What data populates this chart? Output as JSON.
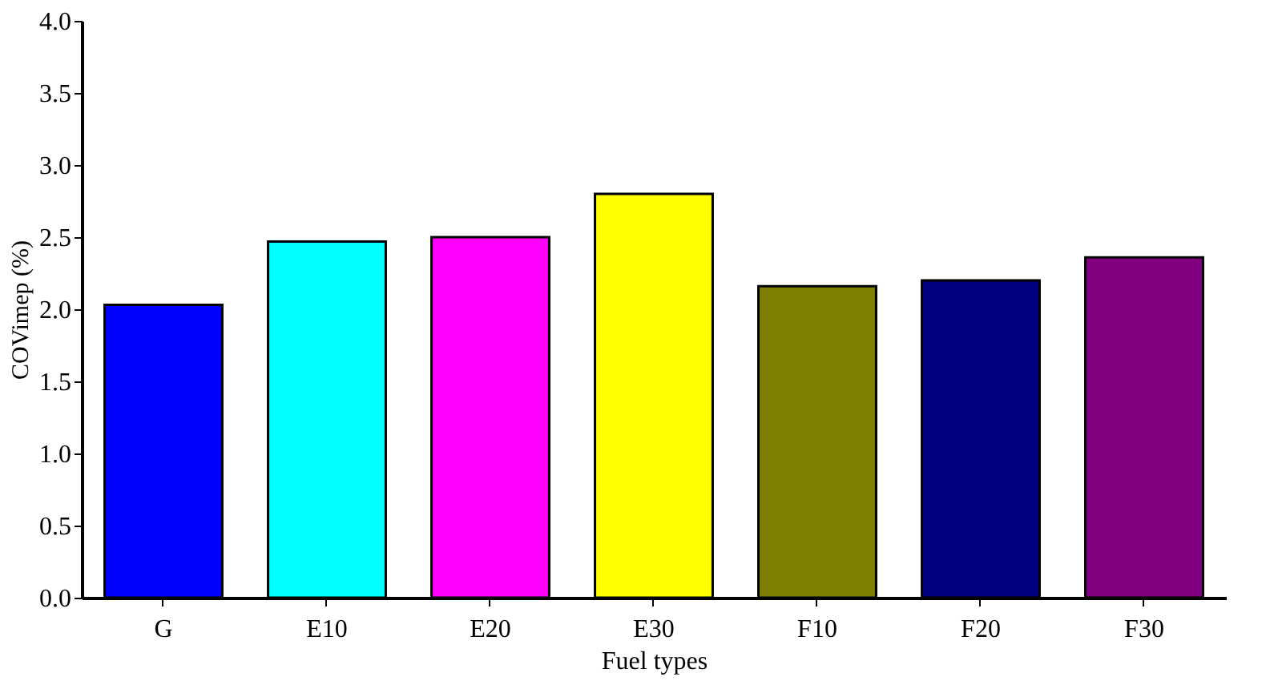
{
  "chart_data": {
    "type": "bar",
    "xlabel": "Fuel types",
    "ylabel": "COVimep (%)",
    "categories": [
      "G",
      "E10",
      "E20",
      "E30",
      "F10",
      "F20",
      "F30"
    ],
    "values": [
      2.03,
      2.47,
      2.5,
      2.8,
      2.16,
      2.2,
      2.36
    ],
    "colors": [
      "#0000ff",
      "#00ffff",
      "#ff00ff",
      "#ffff00",
      "#808000",
      "#000080",
      "#800080"
    ],
    "ylim": [
      0,
      4
    ],
    "yticks": [
      {
        "value": 0,
        "label": "0.0"
      },
      {
        "value": 0.5,
        "label": "0.5"
      },
      {
        "value": 1,
        "label": "1.0"
      },
      {
        "value": 1.5,
        "label": "1.5"
      },
      {
        "value": 2,
        "label": "2.0"
      },
      {
        "value": 2.5,
        "label": "2.5"
      },
      {
        "value": 3,
        "label": "3.0"
      },
      {
        "value": 3.5,
        "label": "3.5"
      },
      {
        "value": 4,
        "label": "4.0"
      }
    ],
    "grid": false
  }
}
